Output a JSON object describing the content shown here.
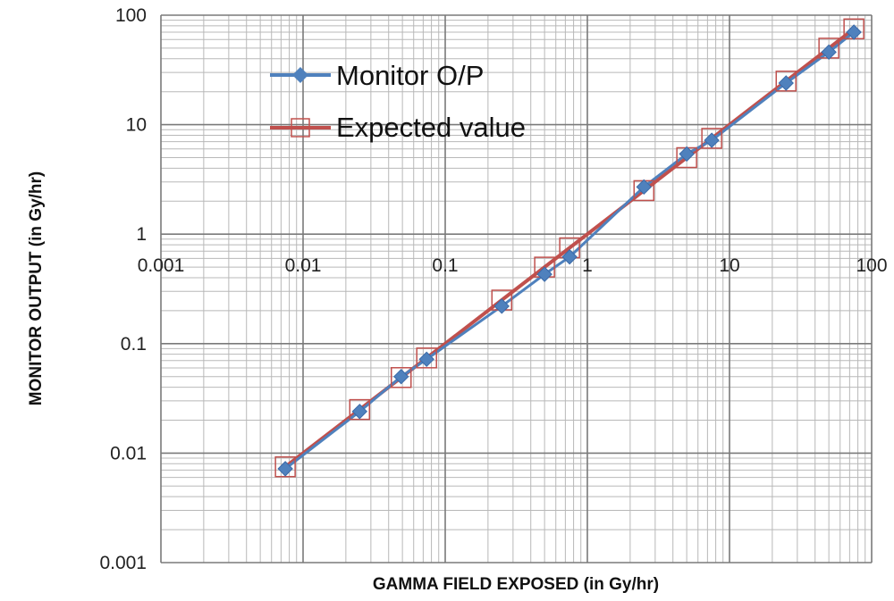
{
  "chart_data": {
    "type": "scatter",
    "title": "",
    "xlabel": "GAMMA FIELD EXPOSED (in Gy/hr)",
    "ylabel": "MONITOR OUTPUT (in Gy/hr)",
    "x_scale": "log",
    "y_scale": "log",
    "xlim": [
      0.001,
      100
    ],
    "ylim": [
      0.001,
      100
    ],
    "x_ticks": [
      "0.001",
      "0.01",
      "0.1",
      "1",
      "10",
      "100"
    ],
    "y_ticks": [
      "0.001",
      "0.01",
      "0.1",
      "1",
      "10",
      "100"
    ],
    "grid": "major and minor",
    "legend_position": "top-left",
    "series": [
      {
        "name": "Monitor O/P",
        "color": "#4f81bd",
        "marker": "diamond",
        "points": [
          [
            0.0075,
            0.0072
          ],
          [
            0.025,
            0.024
          ],
          [
            0.049,
            0.05
          ],
          [
            0.074,
            0.072
          ],
          [
            0.25,
            0.22
          ],
          [
            0.5,
            0.43
          ],
          [
            0.75,
            0.62
          ],
          [
            2.5,
            2.7
          ],
          [
            5.0,
            5.4
          ],
          [
            7.5,
            7.2
          ],
          [
            25,
            24
          ],
          [
            50,
            46
          ],
          [
            75,
            70
          ]
        ]
      },
      {
        "name": "Expected value",
        "color": "#c0504d",
        "marker": "square-open",
        "points": [
          [
            0.0075,
            0.0075
          ],
          [
            0.025,
            0.025
          ],
          [
            0.049,
            0.049
          ],
          [
            0.074,
            0.074
          ],
          [
            0.25,
            0.25
          ],
          [
            0.5,
            0.5
          ],
          [
            0.75,
            0.75
          ],
          [
            2.5,
            2.5
          ],
          [
            5.0,
            5.0
          ],
          [
            7.5,
            7.5
          ],
          [
            25,
            25
          ],
          [
            50,
            50
          ],
          [
            75,
            75
          ]
        ]
      }
    ]
  }
}
